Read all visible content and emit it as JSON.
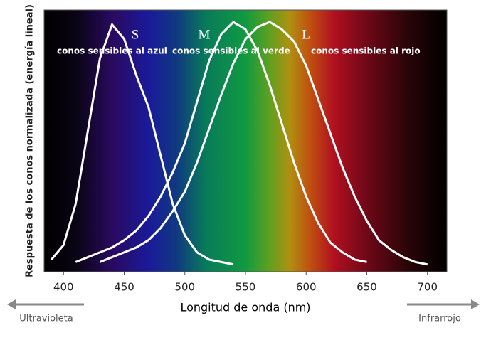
{
  "chart_data": {
    "type": "line",
    "xlabel": "Longitud de onda (nm)",
    "ylabel": "Respuesta de los conos normalizada (energía lineal)",
    "xlim": [
      384,
      716
    ],
    "ylim": [
      -0.03,
      1.05
    ],
    "xticks": [
      400,
      450,
      500,
      550,
      600,
      650,
      700
    ],
    "annotations": [
      "conos sensibles al azul",
      "conos sensibles al verde",
      "conos sensibles al rojo",
      "Ultravioleta",
      "Infrarrojo"
    ],
    "series": [
      {
        "name": "S",
        "color": "#ffffff",
        "x": [
          390,
          400,
          410,
          420,
          430,
          440,
          450,
          460,
          470,
          480,
          490,
          500,
          510,
          520,
          530,
          540
        ],
        "values": [
          0.02,
          0.08,
          0.25,
          0.55,
          0.85,
          0.99,
          0.93,
          0.78,
          0.65,
          0.45,
          0.25,
          0.12,
          0.05,
          0.02,
          0.01,
          0
        ]
      },
      {
        "name": "M",
        "color": "#ffffff",
        "x": [
          410,
          420,
          430,
          440,
          450,
          460,
          470,
          480,
          490,
          500,
          510,
          520,
          530,
          540,
          550,
          560,
          570,
          580,
          590,
          600,
          610,
          620,
          630,
          640,
          650
        ],
        "values": [
          0.01,
          0.03,
          0.05,
          0.07,
          0.1,
          0.14,
          0.2,
          0.28,
          0.38,
          0.5,
          0.67,
          0.84,
          0.95,
          1.0,
          0.97,
          0.88,
          0.74,
          0.58,
          0.42,
          0.28,
          0.17,
          0.09,
          0.05,
          0.02,
          0.01
        ]
      },
      {
        "name": "L",
        "color": "#ffffff",
        "x": [
          430,
          440,
          450,
          460,
          470,
          480,
          490,
          500,
          510,
          520,
          530,
          540,
          550,
          560,
          570,
          580,
          590,
          600,
          610,
          620,
          630,
          640,
          650,
          660,
          670,
          680,
          690,
          700
        ],
        "values": [
          0.01,
          0.03,
          0.05,
          0.07,
          0.1,
          0.15,
          0.22,
          0.3,
          0.42,
          0.56,
          0.7,
          0.83,
          0.93,
          0.98,
          1.0,
          0.97,
          0.92,
          0.82,
          0.68,
          0.54,
          0.4,
          0.28,
          0.18,
          0.1,
          0.06,
          0.03,
          0.01,
          0
        ]
      }
    ]
  }
}
